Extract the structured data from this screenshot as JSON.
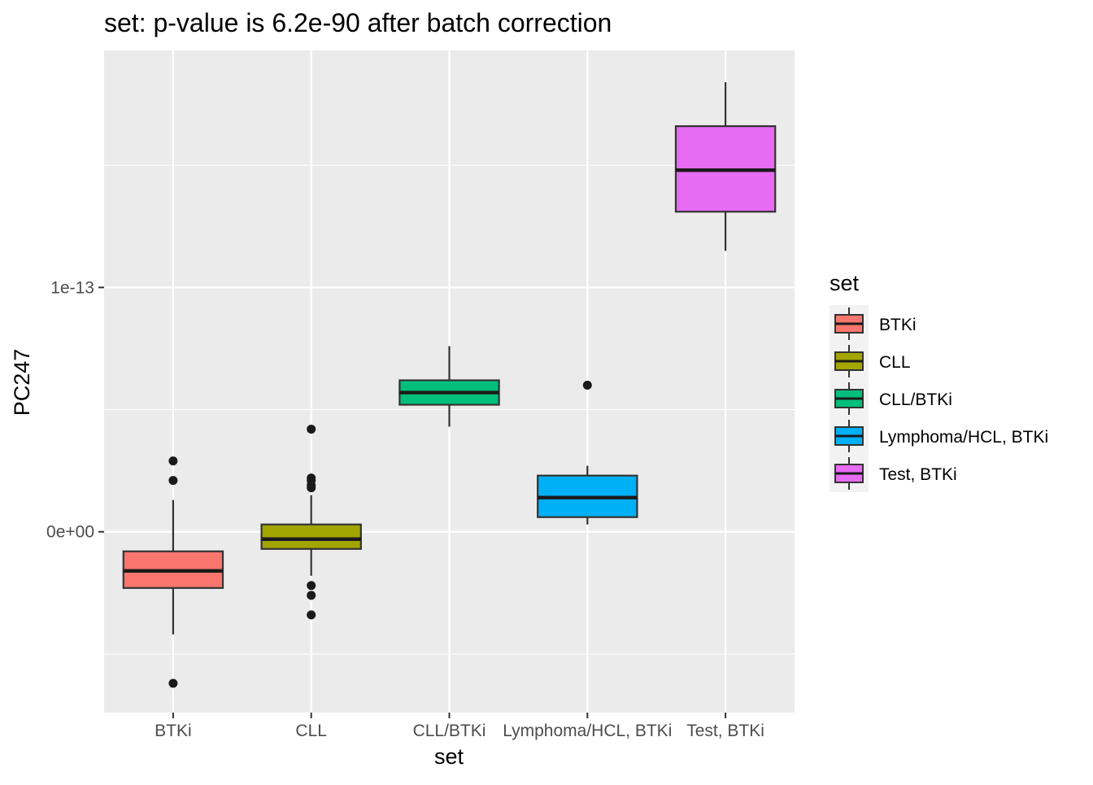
{
  "chart_data": {
    "type": "boxplot",
    "title": "set: p-value is 6.2e-90 after batch correction",
    "xlabel": "set",
    "ylabel": "PC247",
    "categories": [
      "BTKi",
      "CLL",
      "CLL/BTKi",
      "Lymphoma/HCL, BTKi",
      "Test, BTKi"
    ],
    "colors": [
      "#F8766D",
      "#A3A500",
      "#00BF7D",
      "#00B0F6",
      "#E76BF3"
    ],
    "y_ticks": [
      {
        "value": 0,
        "label": "0e+00"
      },
      {
        "value": 1e-13,
        "label": "1e-13"
      }
    ],
    "ylim": [
      -7.4e-14,
      1.97e-13
    ],
    "grid": true,
    "legend": {
      "title": "set",
      "position": "right",
      "items": [
        "BTKi",
        "CLL",
        "CLL/BTKi",
        "Lymphoma/HCL, BTKi",
        "Test, BTKi"
      ]
    },
    "boxes": [
      {
        "name": "BTKi",
        "whisker_low": -4.2e-14,
        "q1": -2.3e-14,
        "median": -1.6e-14,
        "q3": -8e-15,
        "whisker_high": 1.3e-14,
        "outliers": [
          -6.2e-14,
          2.1e-14,
          2.9e-14
        ]
      },
      {
        "name": "CLL",
        "whisker_low": -1.8e-14,
        "q1": -7e-15,
        "median": -3e-15,
        "q3": 3e-15,
        "whisker_high": 1.5e-14,
        "outliers": [
          1.8e-14,
          1.9e-14,
          2.1e-14,
          2.2e-14,
          4.2e-14,
          -2.2e-14,
          -2.6e-14,
          -3.4e-14
        ]
      },
      {
        "name": "CLL/BTKi",
        "whisker_low": 4.3e-14,
        "q1": 5.2e-14,
        "median": 5.7e-14,
        "q3": 6.2e-14,
        "whisker_high": 7.6e-14,
        "outliers": []
      },
      {
        "name": "Lymphoma/HCL, BTKi",
        "whisker_low": 3e-15,
        "q1": 6e-15,
        "median": 1.4e-14,
        "q3": 2.3e-14,
        "whisker_high": 2.7e-14,
        "outliers": [
          6e-14
        ]
      },
      {
        "name": "Test, BTKi",
        "whisker_low": 1.15e-13,
        "q1": 1.31e-13,
        "median": 1.48e-13,
        "q3": 1.66e-13,
        "whisker_high": 1.84e-13,
        "outliers": []
      }
    ]
  }
}
